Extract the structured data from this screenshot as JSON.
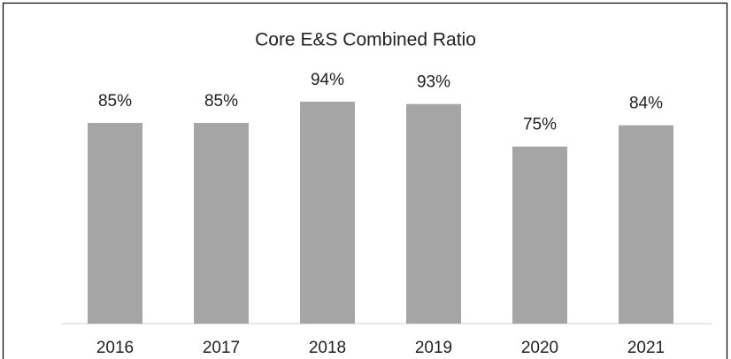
{
  "chart_data": {
    "type": "bar",
    "title": "Core E&S Combined Ratio",
    "categories": [
      "2016",
      "2017",
      "2018",
      "2019",
      "2020",
      "2021"
    ],
    "values": [
      85,
      85,
      94,
      93,
      75,
      84
    ],
    "value_labels": [
      "85%",
      "85%",
      "94%",
      "93%",
      "75%",
      "84%"
    ],
    "color": "#a5a5a5"
  }
}
